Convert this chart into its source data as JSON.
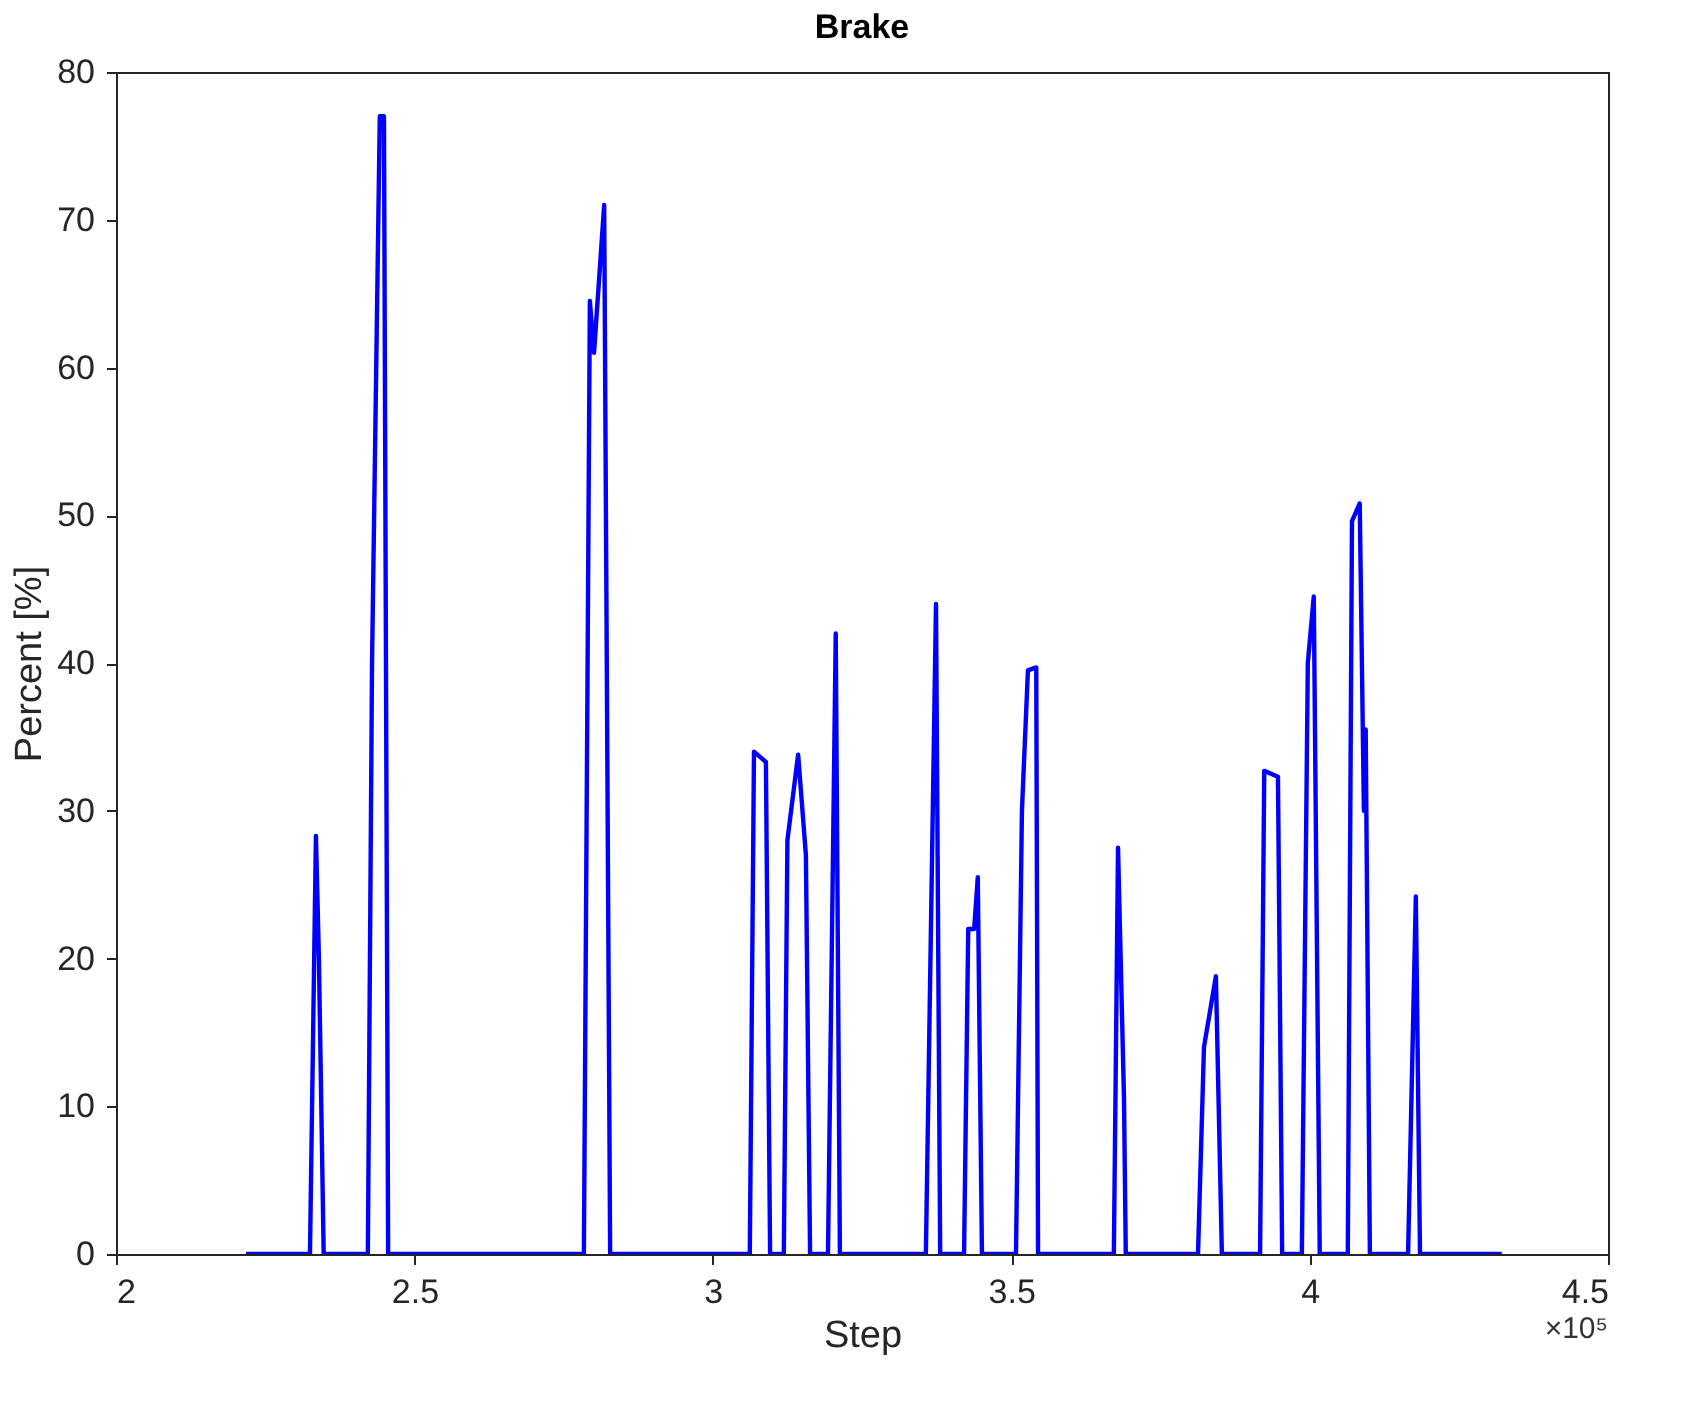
{
  "chart_data": {
    "type": "line",
    "title": "Brake",
    "xlabel": "Step",
    "ylabel": "Percent [%]",
    "annotations": [
      "×10⁵"
    ],
    "series": [
      {
        "color": "#0000ff",
        "x": [
          2.218,
          2.325,
          2.335,
          2.34,
          2.348,
          2.422,
          2.429,
          2.442,
          2.449,
          2.456,
          2.784,
          2.794,
          2.801,
          2.818,
          2.828,
          3.062,
          3.069,
          3.089,
          3.096,
          3.119,
          3.125,
          3.143,
          3.156,
          3.163,
          3.193,
          3.206,
          3.213,
          3.357,
          3.374,
          3.381,
          3.421,
          3.428,
          3.438,
          3.444,
          3.451,
          3.508,
          3.518,
          3.528,
          3.542,
          3.545,
          3.672,
          3.679,
          3.689,
          3.692,
          3.813,
          3.823,
          3.843,
          3.853,
          3.917,
          3.924,
          3.947,
          3.954,
          3.987,
          3.997,
          4.007,
          4.017,
          4.064,
          4.071,
          4.084,
          4.091,
          4.094,
          4.101,
          4.165,
          4.178,
          4.185,
          4.322
        ],
        "values": [
          0,
          0,
          28.3,
          20,
          0,
          0,
          40,
          77,
          77,
          0,
          0,
          64.5,
          61,
          71,
          0,
          0,
          34,
          33.3,
          0,
          0,
          28,
          33.8,
          27,
          0,
          0,
          42,
          0,
          0,
          44,
          0,
          0,
          22,
          22,
          25.5,
          0,
          0,
          30,
          39.5,
          39.7,
          0,
          0,
          27.5,
          10.5,
          0,
          0,
          14,
          18.8,
          0,
          0,
          32.7,
          32.3,
          0,
          0,
          40,
          44.5,
          0,
          0,
          49.6,
          50.8,
          30,
          35.5,
          0,
          0,
          24.2,
          0,
          0
        ]
      }
    ],
    "xlim": [
      2,
      4.5
    ],
    "xticks": [
      2,
      2.5,
      3,
      3.5,
      4,
      4.5
    ],
    "ylim": [
      0,
      80
    ],
    "yticks": [
      0,
      10,
      20,
      30,
      40,
      50,
      60,
      70,
      80
    ],
    "grid": false,
    "line_style": "solid",
    "marker": "none"
  }
}
